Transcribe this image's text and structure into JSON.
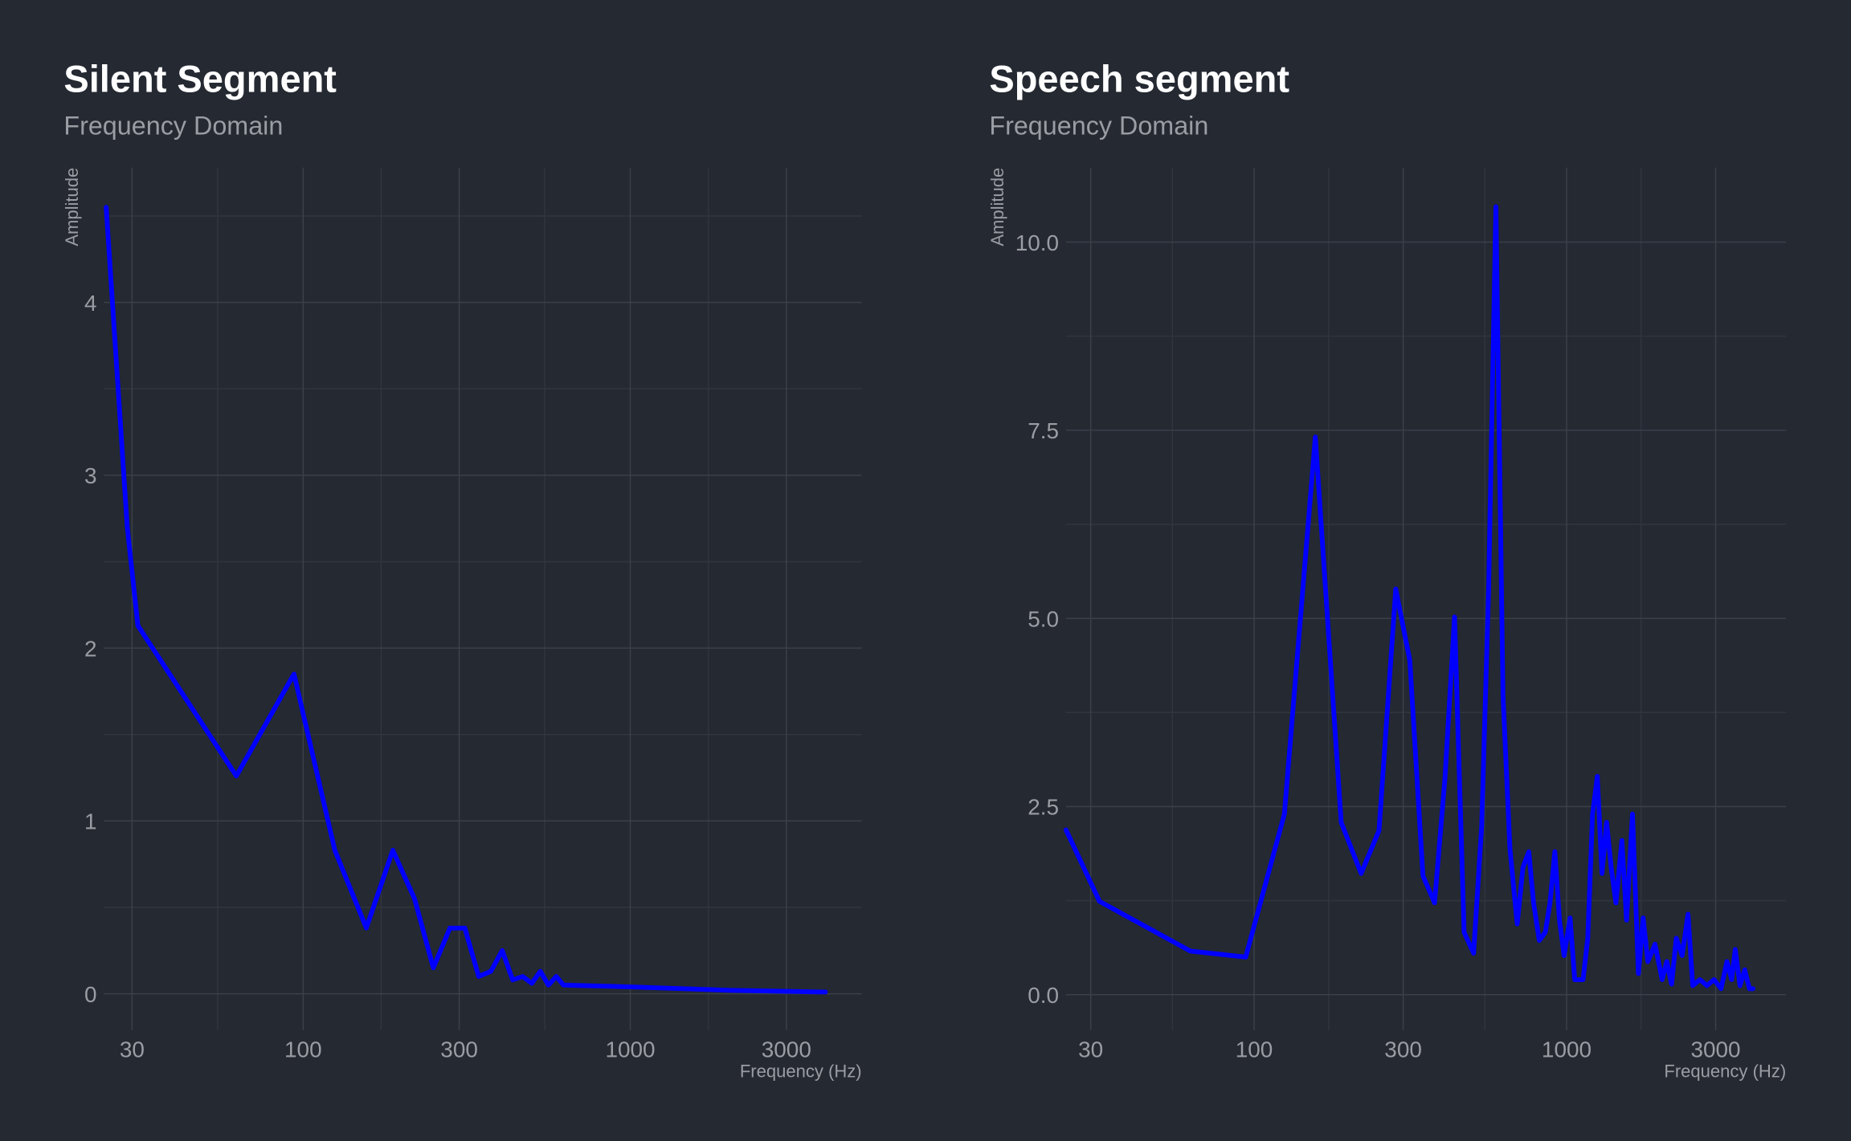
{
  "chart_data": [
    {
      "type": "line",
      "title": "Silent Segment",
      "subtitle": "Frequency Domain",
      "x_label": "Frequency (Hz)",
      "y_label": "Amplitude",
      "xscale": "log",
      "grid": true,
      "color": "#0000ff",
      "x": [
        25,
        29,
        31.25,
        62.5,
        93.75,
        125,
        156,
        188,
        219,
        250,
        281,
        312,
        344,
        375,
        406,
        437,
        469,
        500,
        531,
        562,
        594,
        625,
        1000,
        2000,
        3950
      ],
      "values": [
        4.55,
        2.7,
        2.13,
        1.26,
        1.85,
        0.83,
        0.38,
        0.83,
        0.55,
        0.15,
        0.38,
        0.38,
        0.1,
        0.13,
        0.25,
        0.08,
        0.1,
        0.06,
        0.13,
        0.05,
        0.1,
        0.05,
        0.04,
        0.02,
        0.01
      ],
      "xlim": [
        24.6,
        5100
      ],
      "ylim": [
        -0.21,
        4.78
      ],
      "xticks": [
        30,
        100,
        300,
        1000,
        3000
      ],
      "yticks": [
        0,
        1,
        2,
        3,
        4
      ],
      "xminor": [
        54.77,
        173.2,
        547.7,
        1732
      ],
      "yminor": [
        0.5,
        1.5,
        2.5,
        3.5,
        4.5
      ]
    },
    {
      "type": "line",
      "title": "Speech segment",
      "subtitle": "Frequency Domain",
      "x_label": "Frequency (Hz)",
      "y_label": "Amplitude",
      "xscale": "log",
      "grid": true,
      "color": "#0000ff",
      "x": [
        25,
        32,
        62.5,
        94,
        125,
        157,
        190,
        220,
        251,
        284,
        315,
        347,
        378,
        408,
        438,
        470,
        504,
        535,
        563,
        594,
        626,
        659,
        695,
        725,
        757,
        784,
        818,
        855,
        885,
        917,
        949,
        982,
        1026,
        1062,
        1129,
        1169,
        1211,
        1254,
        1298,
        1343,
        1390,
        1439,
        1503,
        1556,
        1625,
        1698,
        1758,
        1820,
        1918,
        2022,
        2093,
        2168,
        2244,
        2343,
        2447,
        2533,
        2670,
        2813,
        2964,
        3122,
        3260,
        3375,
        3465,
        3589,
        3716,
        3847,
        3950
      ],
      "values": [
        2.19,
        1.24,
        0.58,
        0.5,
        2.4,
        7.41,
        2.29,
        1.61,
        2.18,
        5.39,
        4.44,
        1.58,
        1.22,
        2.87,
        5.02,
        0.83,
        0.55,
        2.24,
        5.4,
        10.47,
        3.97,
        1.93,
        0.94,
        1.69,
        1.9,
        1.22,
        0.72,
        0.83,
        1.22,
        1.9,
        0.99,
        0.52,
        1.02,
        0.2,
        0.2,
        0.75,
        2.4,
        2.9,
        1.61,
        2.29,
        1.68,
        1.22,
        2.05,
        0.99,
        2.4,
        0.28,
        1.02,
        0.44,
        0.67,
        0.2,
        0.44,
        0.14,
        0.75,
        0.52,
        1.07,
        0.12,
        0.2,
        0.12,
        0.2,
        0.08,
        0.44,
        0.2,
        0.6,
        0.12,
        0.33,
        0.08,
        0.08
      ],
      "xlim": [
        25,
        5040
      ],
      "ylim": [
        -0.47,
        10.99
      ],
      "xticks": [
        30,
        100,
        300,
        1000,
        3000
      ],
      "yticks": [
        {
          "value": 0,
          "label": "0.0"
        },
        2.5,
        {
          "value": 5,
          "label": "5.0"
        },
        7.5,
        {
          "value": 10,
          "label": "10.0"
        }
      ],
      "xminor": [
        54.77,
        173.2,
        547.7,
        1732
      ],
      "yminor": [
        1.25,
        3.75,
        6.25,
        8.75
      ]
    }
  ]
}
